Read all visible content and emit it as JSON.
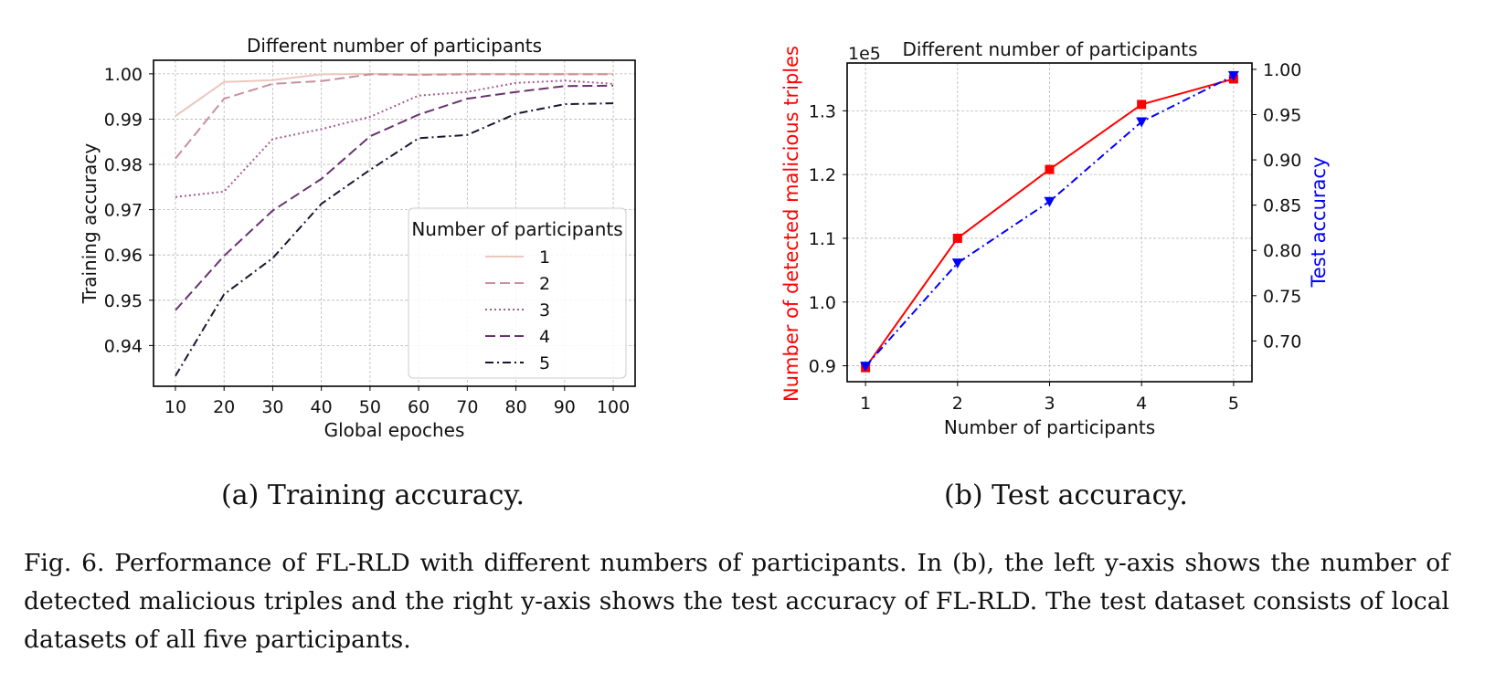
{
  "chart_data": [
    {
      "type": "line",
      "title": "Different number of participants",
      "xlabel": "Global epoches",
      "ylabel": "Training accuracy",
      "x": [
        10,
        20,
        30,
        40,
        50,
        60,
        70,
        80,
        90,
        100
      ],
      "xticks": [
        "10",
        "20",
        "30",
        "40",
        "50",
        "60",
        "70",
        "80",
        "90",
        "100"
      ],
      "yticks": [
        "0.94",
        "0.95",
        "0.96",
        "0.97",
        "0.98",
        "0.99",
        "1.00"
      ],
      "ylim": [
        0.931,
        1.003
      ],
      "grid": true,
      "legend_title": "Number of participants",
      "legend_position": "lower right",
      "series": [
        {
          "name": "1",
          "color": "#ecc7be",
          "dash": "solid",
          "values": [
            0.9907,
            0.9982,
            0.9986,
            0.9999,
            1.0,
            0.9999,
            1.0,
            1.0,
            1.0,
            1.0
          ]
        },
        {
          "name": "2",
          "color": "#c88f9c",
          "dash": "dashed",
          "values": [
            0.9813,
            0.9945,
            0.9978,
            0.9984,
            0.9999,
            0.9998,
            0.9999,
            0.9999,
            0.9999,
            0.9999
          ]
        },
        {
          "name": "3",
          "color": "#a65c8f",
          "dash": "dotted",
          "values": [
            0.9728,
            0.974,
            0.9856,
            0.9878,
            0.9905,
            0.9952,
            0.996,
            0.998,
            0.9985,
            0.9978
          ]
        },
        {
          "name": "4",
          "color": "#6a3270",
          "dash": "dashed",
          "values": [
            0.9478,
            0.9598,
            0.9698,
            0.9768,
            0.9862,
            0.991,
            0.9945,
            0.996,
            0.9973,
            0.9974
          ]
        },
        {
          "name": "5",
          "color": "#1d1430",
          "dash": "dashdot",
          "values": [
            0.9333,
            0.9513,
            0.9593,
            0.9713,
            0.9788,
            0.9858,
            0.9865,
            0.9912,
            0.9933,
            0.9935
          ]
        }
      ]
    },
    {
      "type": "line",
      "title": "Different number of participants",
      "xlabel": "Number of participants",
      "ylabel_left": "Number of detected malicious triples",
      "ylabel_right": "Test accuracy",
      "offset_label": "1e5",
      "x": [
        1,
        2,
        3,
        4,
        5
      ],
      "xticks": [
        "1",
        "2",
        "3",
        "4",
        "5"
      ],
      "yticks_left": [
        "0.9",
        "1.0",
        "1.1",
        "1.2",
        "1.3"
      ],
      "yticks_right": [
        "0.70",
        "0.75",
        "0.80",
        "0.85",
        "0.90",
        "0.95",
        "1.00"
      ],
      "ylim_left": [
        0.875,
        1.375
      ],
      "ylim_right": [
        0.655,
        1.007
      ],
      "grid": true,
      "series": [
        {
          "axis": "left",
          "color": "#ff0000",
          "dash": "solid",
          "marker": "square",
          "values": [
            0.897,
            1.1,
            1.208,
            1.31,
            1.35
          ]
        },
        {
          "axis": "right",
          "color": "#0000ff",
          "dash": "dashdot",
          "marker": "triangle-down",
          "values": [
            0.672,
            0.786,
            0.854,
            0.942,
            0.993
          ]
        }
      ]
    }
  ],
  "subcaptions": {
    "a": "(a) Training accuracy.",
    "b": "(b) Test accuracy."
  },
  "caption": "Fig. 6.  Performance of FL-RLD with different numbers of participants. In (b), the left y-axis shows the number of detected malicious triples and the right y-axis shows the test accuracy of FL-RLD. The test dataset consists of local datasets of all five participants."
}
